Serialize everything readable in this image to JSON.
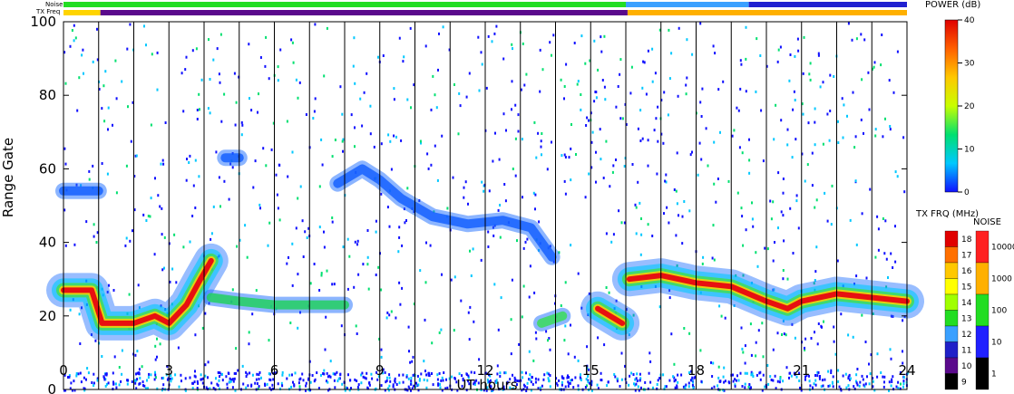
{
  "chart_data": {
    "type": "heatmap",
    "title": "",
    "xlabel": "UT hours",
    "ylabel": "Range Gate",
    "xlim": [
      0,
      24
    ],
    "ylim": [
      0,
      100
    ],
    "x_ticks": [
      0,
      3,
      6,
      9,
      12,
      15,
      18,
      21,
      24
    ],
    "x_tick_labels": [
      "0",
      "3",
      "6",
      "9",
      "12",
      "15",
      "18",
      "21",
      "24"
    ],
    "y_ticks": [
      0,
      20,
      40,
      60,
      80,
      100
    ],
    "y_tick_labels": [
      "0",
      "20",
      "40",
      "60",
      "80",
      "100"
    ],
    "hour_gridlines": [
      1,
      2,
      3,
      4,
      5,
      6,
      7,
      8,
      9,
      10,
      11,
      12,
      13,
      14,
      15,
      16,
      17,
      18,
      19,
      20,
      21,
      22,
      23
    ],
    "top_strips": {
      "noise_label": "Noise",
      "txfreq_label": "TX Freq",
      "noise_segments": [
        {
          "from": 0,
          "to": 16,
          "color": "#22dd22"
        },
        {
          "from": 16,
          "to": 19.5,
          "color": "#3aa0ff"
        },
        {
          "from": 19.5,
          "to": 24,
          "color": "#2020d0"
        }
      ],
      "txfreq_segments": [
        {
          "from": 0,
          "to": 1.05,
          "color": "#ffd400"
        },
        {
          "from": 1.05,
          "to": 16.05,
          "color": "#5a0a8c"
        },
        {
          "from": 16.05,
          "to": 24,
          "color": "#ffb000"
        }
      ]
    },
    "power_colorbar": {
      "title": "POWER (dB)",
      "min": 0,
      "max": 40,
      "ticks": [
        0,
        10,
        20,
        30,
        40
      ],
      "tick_labels": [
        "0",
        "10",
        "20",
        "30",
        "40"
      ],
      "colors": [
        "#1010ff",
        "#00c8ff",
        "#00e070",
        "#c8ff00",
        "#ffc800",
        "#ff6000",
        "#e00000"
      ]
    },
    "txfreq_colorbar": {
      "title": "TX FRQ (MHz)",
      "labels": [
        "9",
        "10",
        "11",
        "12",
        "13",
        "14",
        "15",
        "16",
        "17",
        "18"
      ],
      "colors": [
        "#000000",
        "#5a0a8c",
        "#2020c8",
        "#3aa0ff",
        "#22dd22",
        "#a0ff00",
        "#ffff00",
        "#ffc800",
        "#ff7000",
        "#e00000"
      ]
    },
    "noise_colorbar": {
      "title": "NOISE",
      "labels": [
        "1",
        "10",
        "100",
        "1000",
        "10000"
      ],
      "colors": [
        "#000000",
        "#2020ff",
        "#22dd22",
        "#ffb000",
        "#ff2020"
      ]
    },
    "bands": [
      {
        "series": "red core",
        "color": "#e81010",
        "points": [
          [
            0,
            27
          ],
          [
            0.8,
            27
          ],
          [
            1.1,
            18
          ],
          [
            2,
            18
          ],
          [
            2.6,
            20
          ],
          [
            3,
            18
          ],
          [
            3.5,
            23
          ],
          [
            3.9,
            30
          ],
          [
            4.2,
            35
          ]
        ]
      },
      {
        "series": "red core",
        "color": "#e81010",
        "points": [
          [
            15.2,
            22
          ],
          [
            15.9,
            18
          ]
        ]
      },
      {
        "series": "red core",
        "color": "#e81010",
        "points": [
          [
            16.1,
            30
          ],
          [
            17,
            31
          ],
          [
            18,
            29
          ],
          [
            19,
            28
          ],
          [
            20,
            24
          ],
          [
            20.6,
            22
          ],
          [
            21,
            24
          ],
          [
            22,
            26
          ],
          [
            23,
            25
          ],
          [
            24,
            24
          ]
        ]
      },
      {
        "series": "echo 4-8",
        "color": "#22d060",
        "points": [
          [
            4.2,
            25
          ],
          [
            5,
            24
          ],
          [
            6,
            23
          ],
          [
            7,
            23
          ],
          [
            8,
            23
          ]
        ]
      },
      {
        "series": "echo 14",
        "color": "#3adc5a",
        "points": [
          [
            13.6,
            18
          ],
          [
            14.2,
            20
          ]
        ]
      },
      {
        "series": "upper echo",
        "color": "#1560ff",
        "points": [
          [
            7.8,
            56
          ],
          [
            8.5,
            60
          ],
          [
            9,
            57
          ],
          [
            9.6,
            52
          ],
          [
            10.5,
            47
          ],
          [
            11.5,
            45
          ],
          [
            12.5,
            46
          ],
          [
            13.3,
            44
          ],
          [
            13.9,
            36
          ]
        ]
      },
      {
        "series": "upper echo",
        "color": "#1560ff",
        "points": [
          [
            0,
            54
          ],
          [
            1,
            54
          ]
        ]
      },
      {
        "series": "upper echo",
        "color": "#1560ff",
        "points": [
          [
            4.6,
            63
          ],
          [
            5,
            63
          ]
        ]
      }
    ]
  }
}
